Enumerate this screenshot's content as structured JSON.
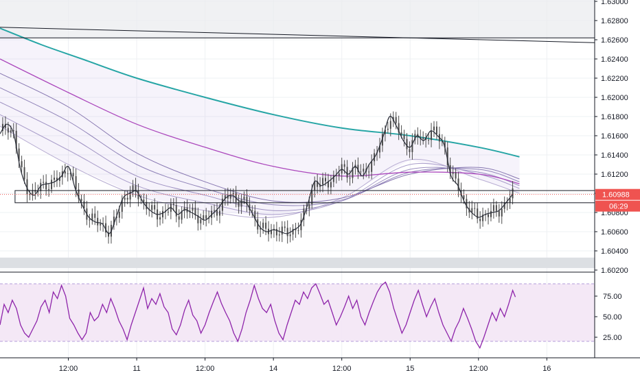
{
  "chart_data": [
    {
      "type": "candlestick",
      "panel": "price",
      "title": "",
      "ylim": [
        1.602,
        1.63
      ],
      "y_ticks": [
        "1.63000",
        "1.62800",
        "1.62600",
        "1.62400",
        "1.62200",
        "1.62000",
        "1.61800",
        "1.61600",
        "1.61400",
        "1.61200",
        "1.61000",
        "1.60800",
        "1.60600",
        "1.60400",
        "1.60200"
      ],
      "x_ticks": [
        {
          "label": "12:00",
          "t": 0.5
        },
        {
          "label": "11",
          "t": 1.0
        },
        {
          "label": "12:00",
          "t": 1.5
        },
        {
          "label": "14",
          "t": 2.0
        },
        {
          "label": "12:00",
          "t": 2.5
        },
        {
          "label": "15",
          "t": 3.0
        },
        {
          "label": "12:00",
          "t": 3.5
        },
        {
          "label": "16",
          "t": 4.0
        }
      ],
      "x_range": [
        0.0,
        4.35
      ],
      "grid": true,
      "current_price": "1.60988",
      "countdown": "06:29",
      "close_series": [
        [
          0.0,
          1.6162
        ],
        [
          0.05,
          1.6172
        ],
        [
          0.1,
          1.6162
        ],
        [
          0.15,
          1.6125
        ],
        [
          0.2,
          1.6105
        ],
        [
          0.25,
          1.6098
        ],
        [
          0.3,
          1.6108
        ],
        [
          0.35,
          1.611
        ],
        [
          0.4,
          1.6112
        ],
        [
          0.45,
          1.6118
        ],
        [
          0.5,
          1.6128
        ],
        [
          0.55,
          1.6105
        ],
        [
          0.6,
          1.6088
        ],
        [
          0.65,
          1.6075
        ],
        [
          0.7,
          1.607
        ],
        [
          0.75,
          1.6068
        ],
        [
          0.8,
          1.6058
        ],
        [
          0.85,
          1.6075
        ],
        [
          0.9,
          1.6095
        ],
        [
          0.95,
          1.61
        ],
        [
          1.0,
          1.6102
        ],
        [
          1.05,
          1.609
        ],
        [
          1.1,
          1.6082
        ],
        [
          1.15,
          1.6078
        ],
        [
          1.2,
          1.608
        ],
        [
          1.25,
          1.6085
        ],
        [
          1.3,
          1.6078
        ],
        [
          1.35,
          1.6083
        ],
        [
          1.4,
          1.608
        ],
        [
          1.45,
          1.6076
        ],
        [
          1.5,
          1.6072
        ],
        [
          1.55,
          1.6078
        ],
        [
          1.6,
          1.6085
        ],
        [
          1.65,
          1.6095
        ],
        [
          1.7,
          1.6098
        ],
        [
          1.75,
          1.6092
        ],
        [
          1.8,
          1.609
        ],
        [
          1.85,
          1.6078
        ],
        [
          1.9,
          1.6065
        ],
        [
          1.95,
          1.606
        ],
        [
          2.0,
          1.6062
        ],
        [
          2.05,
          1.606
        ],
        [
          2.1,
          1.6058
        ],
        [
          2.15,
          1.6062
        ],
        [
          2.2,
          1.6068
        ],
        [
          2.25,
          1.6088
        ],
        [
          2.3,
          1.6112
        ],
        [
          2.35,
          1.6108
        ],
        [
          2.4,
          1.6112
        ],
        [
          2.45,
          1.6118
        ],
        [
          2.5,
          1.6125
        ],
        [
          2.55,
          1.612
        ],
        [
          2.6,
          1.6128
        ],
        [
          2.65,
          1.6118
        ],
        [
          2.7,
          1.613
        ],
        [
          2.75,
          1.614
        ],
        [
          2.8,
          1.6158
        ],
        [
          2.85,
          1.618
        ],
        [
          2.9,
          1.617
        ],
        [
          2.95,
          1.6155
        ],
        [
          3.0,
          1.6148
        ],
        [
          3.05,
          1.616
        ],
        [
          3.1,
          1.6155
        ],
        [
          3.15,
          1.6165
        ],
        [
          3.2,
          1.616
        ],
        [
          3.25,
          1.615
        ],
        [
          3.3,
          1.6118
        ],
        [
          3.35,
          1.6108
        ],
        [
          3.4,
          1.609
        ],
        [
          3.45,
          1.608
        ],
        [
          3.5,
          1.6075
        ],
        [
          3.55,
          1.6078
        ],
        [
          3.6,
          1.608
        ],
        [
          3.65,
          1.6082
        ],
        [
          3.7,
          1.609
        ],
        [
          3.75,
          1.6099
        ]
      ],
      "ema_ribbon": [
        {
          "color": "#b7acd2",
          "points": [
            [
              0.0,
              1.617
            ],
            [
              0.5,
              1.613
            ],
            [
              1.0,
              1.6098
            ],
            [
              1.5,
              1.6082
            ],
            [
              2.0,
              1.6075
            ],
            [
              2.5,
              1.6095
            ],
            [
              3.0,
              1.6135
            ],
            [
              3.5,
              1.6115
            ],
            [
              3.8,
              1.61
            ]
          ]
        },
        {
          "color": "#a99dca",
          "points": [
            [
              0.0,
              1.6182
            ],
            [
              0.5,
              1.6145
            ],
            [
              1.0,
              1.6108
            ],
            [
              1.5,
              1.609
            ],
            [
              2.0,
              1.6078
            ],
            [
              2.5,
              1.6092
            ],
            [
              3.0,
              1.613
            ],
            [
              3.5,
              1.612
            ],
            [
              3.8,
              1.6105
            ]
          ]
        },
        {
          "color": "#9c8fc1",
          "points": [
            [
              0.0,
              1.6195
            ],
            [
              0.5,
              1.616
            ],
            [
              1.0,
              1.6118
            ],
            [
              1.5,
              1.6098
            ],
            [
              2.0,
              1.6082
            ],
            [
              2.5,
              1.6092
            ],
            [
              3.0,
              1.6125
            ],
            [
              3.5,
              1.6122
            ],
            [
              3.8,
              1.6108
            ]
          ]
        },
        {
          "color": "#8f82b8",
          "points": [
            [
              0.0,
              1.621
            ],
            [
              0.5,
              1.6175
            ],
            [
              1.0,
              1.613
            ],
            [
              1.5,
              1.6105
            ],
            [
              2.0,
              1.6088
            ],
            [
              2.5,
              1.6093
            ],
            [
              3.0,
              1.6122
            ],
            [
              3.5,
              1.6125
            ],
            [
              3.8,
              1.6112
            ]
          ]
        },
        {
          "color": "#8676b0",
          "points": [
            [
              0.0,
              1.6225
            ],
            [
              0.5,
              1.619
            ],
            [
              1.0,
              1.6142
            ],
            [
              1.5,
              1.6112
            ],
            [
              2.0,
              1.6092
            ],
            [
              2.5,
              1.6095
            ],
            [
              3.0,
              1.612
            ],
            [
              3.5,
              1.6127
            ],
            [
              3.8,
              1.6115
            ]
          ]
        }
      ],
      "ema_purple": [
        [
          0.0,
          1.624
        ],
        [
          0.5,
          1.6205
        ],
        [
          1.0,
          1.6172
        ],
        [
          1.5,
          1.6148
        ],
        [
          2.0,
          1.6128
        ],
        [
          2.5,
          1.6118
        ],
        [
          3.0,
          1.6122
        ],
        [
          3.5,
          1.612
        ],
        [
          3.8,
          1.611
        ]
      ],
      "ema_teal": [
        [
          0.0,
          1.6272
        ],
        [
          0.3,
          1.6255
        ],
        [
          0.6,
          1.624
        ],
        [
          1.0,
          1.622
        ],
        [
          1.5,
          1.62
        ],
        [
          2.0,
          1.6182
        ],
        [
          2.5,
          1.6168
        ],
        [
          3.0,
          1.616
        ],
        [
          3.5,
          1.6148
        ],
        [
          3.8,
          1.6138
        ]
      ],
      "trendline": [
        [
          0.0,
          1.6273
        ],
        [
          4.35,
          1.6257
        ]
      ],
      "resistance_line": 1.6262,
      "support_box": {
        "t1": 0.11,
        "t2": 4.35,
        "top": 1.61,
        "bottom": 1.6093
      },
      "bottom_band": [
        1.6022,
        1.6033
      ],
      "top_band": [
        1.6262,
        1.63
      ]
    },
    {
      "type": "line",
      "panel": "rsi",
      "title": "",
      "ylim": [
        0,
        100
      ],
      "y_ticks": [
        "75.00",
        "50.00",
        "25.00"
      ],
      "band": [
        20,
        90
      ],
      "series": [
        {
          "color": "#8e24aa",
          "values": [
            [
              0.0,
              40
            ],
            [
              0.03,
              65
            ],
            [
              0.06,
              55
            ],
            [
              0.09,
              70
            ],
            [
              0.12,
              60
            ],
            [
              0.15,
              40
            ],
            [
              0.18,
              30
            ],
            [
              0.21,
              25
            ],
            [
              0.24,
              35
            ],
            [
              0.27,
              45
            ],
            [
              0.3,
              62
            ],
            [
              0.33,
              70
            ],
            [
              0.36,
              55
            ],
            [
              0.39,
              80
            ],
            [
              0.42,
              72
            ],
            [
              0.45,
              88
            ],
            [
              0.48,
              75
            ],
            [
              0.51,
              48
            ],
            [
              0.54,
              40
            ],
            [
              0.57,
              30
            ],
            [
              0.6,
              22
            ],
            [
              0.63,
              30
            ],
            [
              0.66,
              55
            ],
            [
              0.69,
              45
            ],
            [
              0.72,
              50
            ],
            [
              0.75,
              65
            ],
            [
              0.78,
              55
            ],
            [
              0.81,
              72
            ],
            [
              0.84,
              60
            ],
            [
              0.87,
              45
            ],
            [
              0.9,
              35
            ],
            [
              0.93,
              22
            ],
            [
              0.96,
              40
            ],
            [
              0.99,
              55
            ],
            [
              1.02,
              70
            ],
            [
              1.05,
              85
            ],
            [
              1.08,
              60
            ],
            [
              1.11,
              72
            ],
            [
              1.14,
              65
            ],
            [
              1.17,
              78
            ],
            [
              1.2,
              62
            ],
            [
              1.23,
              55
            ],
            [
              1.26,
              35
            ],
            [
              1.29,
              28
            ],
            [
              1.32,
              40
            ],
            [
              1.35,
              58
            ],
            [
              1.38,
              70
            ],
            [
              1.41,
              52
            ],
            [
              1.44,
              45
            ],
            [
              1.47,
              30
            ],
            [
              1.5,
              40
            ],
            [
              1.53,
              55
            ],
            [
              1.56,
              68
            ],
            [
              1.59,
              80
            ],
            [
              1.62,
              66
            ],
            [
              1.65,
              55
            ],
            [
              1.68,
              45
            ],
            [
              1.71,
              30
            ],
            [
              1.74,
              20
            ],
            [
              1.77,
              35
            ],
            [
              1.8,
              55
            ],
            [
              1.83,
              70
            ],
            [
              1.86,
              88
            ],
            [
              1.89,
              72
            ],
            [
              1.92,
              60
            ],
            [
              1.95,
              55
            ],
            [
              1.98,
              65
            ],
            [
              2.01,
              45
            ],
            [
              2.04,
              30
            ],
            [
              2.07,
              22
            ],
            [
              2.1,
              40
            ],
            [
              2.13,
              55
            ],
            [
              2.16,
              70
            ],
            [
              2.19,
              65
            ],
            [
              2.22,
              80
            ],
            [
              2.25,
              72
            ],
            [
              2.28,
              85
            ],
            [
              2.31,
              90
            ],
            [
              2.34,
              78
            ],
            [
              2.37,
              65
            ],
            [
              2.4,
              70
            ],
            [
              2.43,
              55
            ],
            [
              2.46,
              40
            ],
            [
              2.49,
              50
            ],
            [
              2.52,
              62
            ],
            [
              2.55,
              75
            ],
            [
              2.58,
              60
            ],
            [
              2.61,
              70
            ],
            [
              2.64,
              50
            ],
            [
              2.67,
              40
            ],
            [
              2.7,
              55
            ],
            [
              2.73,
              68
            ],
            [
              2.76,
              80
            ],
            [
              2.79,
              88
            ],
            [
              2.82,
              92
            ],
            [
              2.85,
              80
            ],
            [
              2.88,
              60
            ],
            [
              2.91,
              45
            ],
            [
              2.94,
              30
            ],
            [
              2.97,
              40
            ],
            [
              3.0,
              55
            ],
            [
              3.03,
              70
            ],
            [
              3.06,
              82
            ],
            [
              3.09,
              65
            ],
            [
              3.12,
              50
            ],
            [
              3.15,
              62
            ],
            [
              3.18,
              72
            ],
            [
              3.21,
              55
            ],
            [
              3.24,
              40
            ],
            [
              3.27,
              30
            ],
            [
              3.3,
              20
            ],
            [
              3.33,
              35
            ],
            [
              3.36,
              45
            ],
            [
              3.39,
              60
            ],
            [
              3.42,
              48
            ],
            [
              3.45,
              35
            ],
            [
              3.48,
              20
            ],
            [
              3.51,
              12
            ],
            [
              3.54,
              25
            ],
            [
              3.57,
              40
            ],
            [
              3.6,
              55
            ],
            [
              3.63,
              45
            ],
            [
              3.66,
              60
            ],
            [
              3.69,
              50
            ],
            [
              3.72,
              65
            ],
            [
              3.75,
              82
            ],
            [
              3.77,
              74
            ]
          ]
        }
      ]
    }
  ],
  "colors": {
    "up": "#26a69a",
    "down": "#ef5350",
    "candle": "#4a4a4a",
    "close_line": "#2a2e39",
    "teal": "#26a5a5",
    "purple": "#ab47bc",
    "rsi": "#8e24aa",
    "price_tag": "#ef5350",
    "grid": "#eef0f3",
    "axis_text": "#131722"
  }
}
